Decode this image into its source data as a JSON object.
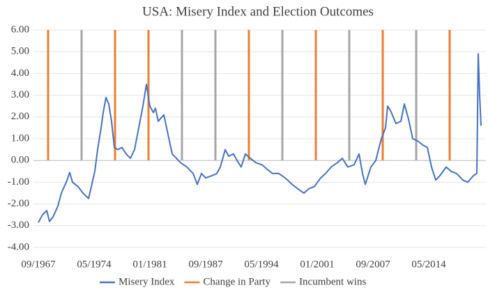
{
  "chart_data": {
    "type": "line",
    "title": "USA: Misery Index and Election Outcomes",
    "xlim": [
      "09/1967",
      "09/2020"
    ],
    "xticks": [
      "09/1967",
      "05/1974",
      "01/1981",
      "09/1987",
      "05/1994",
      "01/2001",
      "09/2007",
      "05/2014"
    ],
    "ylim": [
      -4,
      6
    ],
    "yticks": [
      {
        "value": 6,
        "label": "6.00"
      },
      {
        "value": 5,
        "label": "5.00"
      },
      {
        "value": 4,
        "label": "4.00"
      },
      {
        "value": 3,
        "label": "3.00"
      },
      {
        "value": 2,
        "label": "2.00"
      },
      {
        "value": 1,
        "label": "1.00"
      },
      {
        "value": 0,
        "label": "0.00"
      },
      {
        "value": -1,
        "label": "-1.00"
      },
      {
        "value": -2,
        "label": "-2.00"
      },
      {
        "value": -3,
        "label": "-3.00"
      },
      {
        "value": -4,
        "label": "-4.00"
      }
    ],
    "grid": true,
    "legend": "bottom",
    "series": [
      {
        "name": "Misery Index",
        "color": "#4472c4",
        "x": [
          "09/1967",
          "03/1968",
          "09/1968",
          "01/1969",
          "06/1969",
          "01/1970",
          "06/1970",
          "01/1971",
          "06/1971",
          "10/1971",
          "06/1972",
          "01/1973",
          "09/1973",
          "01/1974",
          "06/1974",
          "10/1974",
          "03/1975",
          "06/1975",
          "10/1975",
          "02/1976",
          "06/1976",
          "10/1976",
          "03/1977",
          "09/1977",
          "03/1978",
          "09/1978",
          "03/1979",
          "09/1979",
          "03/1980",
          "08/1980",
          "01/1981",
          "06/1981",
          "09/1981",
          "01/1982",
          "09/1982",
          "03/1983",
          "09/1983",
          "03/1984",
          "09/1984",
          "06/1985",
          "03/1986",
          "09/1986",
          "03/1987",
          "09/1987",
          "06/1988",
          "01/1989",
          "06/1989",
          "01/1990",
          "06/1990",
          "01/1991",
          "06/1991",
          "12/1991",
          "06/1992",
          "01/1993",
          "09/1993",
          "06/1994",
          "01/1995",
          "09/1995",
          "06/1996",
          "03/1997",
          "01/1998",
          "09/1998",
          "06/1999",
          "01/2000",
          "09/2000",
          "06/2001",
          "01/2002",
          "09/2002",
          "06/2003",
          "01/2004",
          "09/2004",
          "06/2005",
          "01/2006",
          "06/2006",
          "10/2006",
          "06/2007",
          "01/2008",
          "09/2008",
          "03/2009",
          "06/2009",
          "10/2009",
          "06/2010",
          "01/2011",
          "06/2011",
          "12/2011",
          "06/2012",
          "01/2013",
          "09/2013",
          "03/2014",
          "09/2014",
          "03/2015",
          "09/2015",
          "06/2016",
          "01/2017",
          "09/2017",
          "06/2018",
          "01/2019",
          "09/2019",
          "02/2020",
          "04/2020",
          "06/2020",
          "08/2020"
        ],
        "values": [
          -2.85,
          -2.5,
          -2.3,
          -2.8,
          -2.6,
          -2.1,
          -1.5,
          -1.0,
          -0.55,
          -1.0,
          -1.2,
          -1.5,
          -1.75,
          -1.2,
          -0.5,
          0.5,
          1.5,
          2.2,
          2.9,
          2.6,
          1.8,
          0.6,
          0.5,
          0.6,
          0.3,
          0.1,
          0.5,
          1.5,
          2.5,
          3.5,
          2.5,
          2.2,
          2.4,
          1.8,
          2.1,
          1.2,
          0.3,
          0.1,
          -0.1,
          -0.3,
          -0.6,
          -1.1,
          -0.6,
          -0.8,
          -0.7,
          -0.6,
          -0.3,
          0.5,
          0.2,
          0.3,
          0.0,
          -0.3,
          0.3,
          0.1,
          -0.1,
          -0.2,
          -0.4,
          -0.6,
          -0.6,
          -0.8,
          -1.1,
          -1.3,
          -1.5,
          -1.3,
          -1.2,
          -0.8,
          -0.6,
          -0.3,
          -0.1,
          0.1,
          -0.3,
          -0.2,
          0.3,
          -0.6,
          -1.1,
          -0.3,
          0.0,
          1.0,
          1.5,
          2.5,
          2.3,
          1.7,
          1.8,
          2.6,
          1.9,
          1.0,
          0.9,
          0.7,
          0.6,
          -0.3,
          -0.9,
          -0.7,
          -0.3,
          -0.5,
          -0.6,
          -0.9,
          -1.0,
          -0.7,
          -0.6,
          4.9,
          3.0,
          1.6
        ]
      },
      {
        "name": "Change in Party",
        "color": "#ed7d31",
        "type": "bar",
        "x": [
          "11/1968",
          "11/1976",
          "11/1980",
          "11/1992",
          "11/2000",
          "11/2008",
          "11/2016"
        ],
        "values": [
          6,
          6,
          6,
          6,
          6,
          6,
          6
        ]
      },
      {
        "name": "Incumbent wins",
        "color": "#a5a5a5",
        "type": "bar",
        "x": [
          "11/1972",
          "11/1984",
          "11/1988",
          "11/1996",
          "11/2004",
          "11/2012"
        ],
        "values": [
          6,
          6,
          6,
          6,
          6,
          6
        ]
      }
    ]
  }
}
